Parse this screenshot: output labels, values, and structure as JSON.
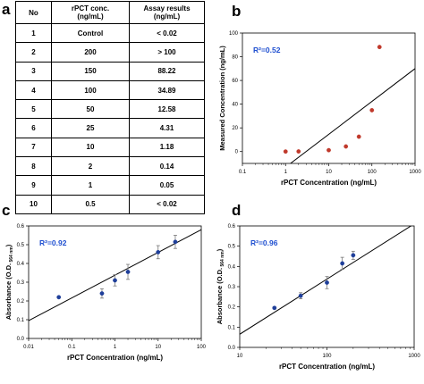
{
  "panel_letters": [
    "a",
    "b",
    "c",
    "d"
  ],
  "table": {
    "headers": [
      "No",
      "rPCT conc.\n(ng/mL)",
      "Assay results\n(ng/mL)"
    ],
    "rows": [
      [
        "1",
        "Control",
        "< 0.02"
      ],
      [
        "2",
        "200",
        "> 100"
      ],
      [
        "3",
        "150",
        "88.22"
      ],
      [
        "4",
        "100",
        "34.89"
      ],
      [
        "5",
        "50",
        "12.58"
      ],
      [
        "6",
        "25",
        "4.31"
      ],
      [
        "7",
        "10",
        "1.18"
      ],
      [
        "8",
        "2",
        "0.14"
      ],
      [
        "9",
        "1",
        "0.05"
      ],
      [
        "10",
        "0.5",
        "< 0.02"
      ]
    ]
  },
  "colors": {
    "points_b": "#c0392b",
    "points_cd": "#1f3f9a",
    "r2": "#1f4fd0",
    "line": "#000000"
  },
  "chart_data": [
    {
      "panel": "b",
      "type": "scatter",
      "xscale": "log",
      "xlim": [
        0.1,
        1000
      ],
      "ylim": [
        -10,
        100
      ],
      "xticks": [
        "0.1",
        "1",
        "10",
        "100",
        "1000"
      ],
      "yticks": [
        "0",
        "20",
        "40",
        "60",
        "80",
        "100"
      ],
      "xlabel": "rPCT Concentration (ng/mL)",
      "ylabel": "Measured Concentration (ng/mL)",
      "annotation": "R²=0.52",
      "points": [
        {
          "x": 1,
          "y": 0.05
        },
        {
          "x": 2,
          "y": 0.14
        },
        {
          "x": 10,
          "y": 1.18
        },
        {
          "x": 25,
          "y": 4.31
        },
        {
          "x": 50,
          "y": 12.58
        },
        {
          "x": 100,
          "y": 34.89
        },
        {
          "x": 150,
          "y": 88.22
        }
      ],
      "fit_line": [
        {
          "x": 1.3,
          "y": -10
        },
        {
          "x": 1000,
          "y": 70
        }
      ]
    },
    {
      "panel": "c",
      "type": "scatter",
      "xscale": "log",
      "xlim": [
        0.01,
        100
      ],
      "ylim": [
        0,
        0.6
      ],
      "xticks": [
        "0.01",
        "0.1",
        "1",
        "10",
        "100"
      ],
      "yticks": [
        "0.0",
        "0.1",
        "0.2",
        "0.3",
        "0.4",
        "0.5",
        "0.6"
      ],
      "xlabel": "rPCT Concentration (ng/mL)",
      "ylabel": "Absorbance (O.D.",
      "ylabel_sub": "564 nm",
      "annotation": "R²=0.92",
      "points": [
        {
          "x": 0.05,
          "y": 0.22,
          "err": 0
        },
        {
          "x": 0.5,
          "y": 0.24,
          "err": 0.025
        },
        {
          "x": 1,
          "y": 0.31,
          "err": 0.03
        },
        {
          "x": 2,
          "y": 0.355,
          "err": 0.04
        },
        {
          "x": 10,
          "y": 0.46,
          "err": 0.035
        },
        {
          "x": 25,
          "y": 0.515,
          "err": 0.035
        }
      ],
      "fit_line": [
        {
          "x": 0.01,
          "y": 0.095
        },
        {
          "x": 100,
          "y": 0.58
        }
      ]
    },
    {
      "panel": "d",
      "type": "scatter",
      "xscale": "log",
      "xlim": [
        10,
        1000
      ],
      "ylim": [
        0,
        0.6
      ],
      "xticks": [
        "10",
        "100",
        "1000"
      ],
      "yticks": [
        "0.0",
        "0.1",
        "0.2",
        "0.3",
        "0.4",
        "0.5",
        "0.6"
      ],
      "xlabel": "rPCT Concentration (ng/mL)",
      "ylabel": "Absorbance (O.D.",
      "ylabel_sub": "564 nm",
      "annotation": "R²=0.96",
      "points": [
        {
          "x": 25,
          "y": 0.195,
          "err": 0.005
        },
        {
          "x": 50,
          "y": 0.255,
          "err": 0.015
        },
        {
          "x": 100,
          "y": 0.32,
          "err": 0.03
        },
        {
          "x": 150,
          "y": 0.415,
          "err": 0.03
        },
        {
          "x": 200,
          "y": 0.455,
          "err": 0.02
        }
      ],
      "fit_line": [
        {
          "x": 10,
          "y": 0.065
        },
        {
          "x": 1000,
          "y": 0.61
        }
      ]
    }
  ]
}
